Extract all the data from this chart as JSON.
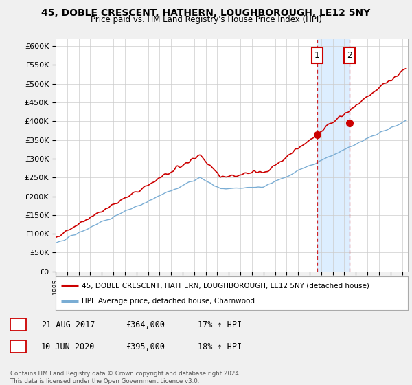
{
  "title": "45, DOBLE CRESCENT, HATHERN, LOUGHBOROUGH, LE12 5NY",
  "subtitle": "Price paid vs. HM Land Registry's House Price Index (HPI)",
  "ylabel_ticks": [
    "£0",
    "£50K",
    "£100K",
    "£150K",
    "£200K",
    "£250K",
    "£300K",
    "£350K",
    "£400K",
    "£450K",
    "£500K",
    "£550K",
    "£600K"
  ],
  "ytick_values": [
    0,
    50000,
    100000,
    150000,
    200000,
    250000,
    300000,
    350000,
    400000,
    450000,
    500000,
    550000,
    600000
  ],
  "ylim": [
    0,
    620000
  ],
  "x_start_year": 1995,
  "x_end_year": 2025,
  "xtick_years": [
    1995,
    1996,
    1997,
    1998,
    1999,
    2000,
    2001,
    2002,
    2003,
    2004,
    2005,
    2006,
    2007,
    2008,
    2009,
    2010,
    2011,
    2012,
    2013,
    2014,
    2015,
    2016,
    2017,
    2018,
    2019,
    2020,
    2021,
    2022,
    2023,
    2024,
    2025
  ],
  "sale1_x": 2017.65,
  "sale1_y": 364000,
  "sale1_label": "1",
  "sale1_date": "21-AUG-2017",
  "sale1_price": "£364,000",
  "sale1_hpi": "17% ↑ HPI",
  "sale2_x": 2020.44,
  "sale2_y": 395000,
  "sale2_label": "2",
  "sale2_date": "10-JUN-2020",
  "sale2_price": "£395,000",
  "sale2_hpi": "18% ↑ HPI",
  "red_line_color": "#cc0000",
  "blue_line_color": "#7aadd4",
  "shade_color": "#ddeeff",
  "grid_color": "#cccccc",
  "bg_color": "#f0f0f0",
  "plot_bg_color": "#ffffff",
  "legend_label_red": "45, DOBLE CRESCENT, HATHERN, LOUGHBOROUGH, LE12 5NY (detached house)",
  "legend_label_blue": "HPI: Average price, detached house, Charnwood",
  "footer": "Contains HM Land Registry data © Crown copyright and database right 2024.\nThis data is licensed under the Open Government Licence v3.0."
}
